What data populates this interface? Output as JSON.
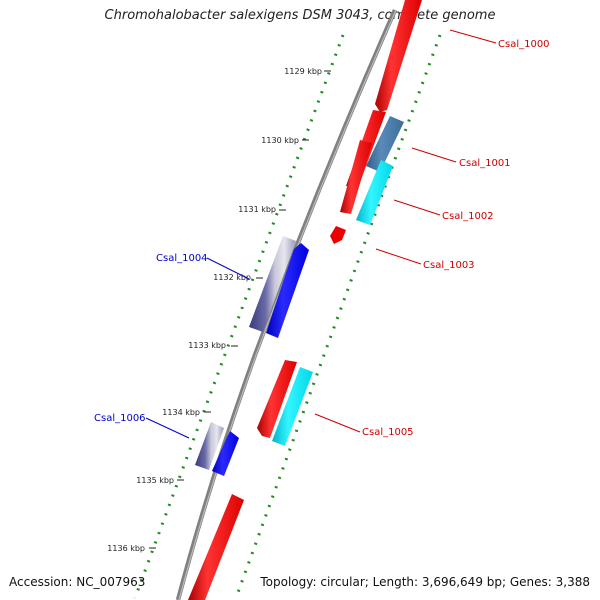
{
  "title": "Chromohalobacter salexigens DSM 3043, complete genome",
  "accession": "Accession: NC_007963",
  "summary": "Topology: circular; Length: 3,696,649 bp; Genes: 3,388",
  "colors": {
    "backbone": "#808080",
    "forward_cds": "#ff0000",
    "forward_cds_alt": "#00ffff",
    "reverse_cds": "#0000ff",
    "reverse_cds_alt": "#4b4b9b",
    "gc_ticks": "#228b22",
    "forward_label": "#cc0000",
    "reverse_label": "#0000cc"
  },
  "ticks": [
    {
      "label": "1129 kbp"
    },
    {
      "label": "1130 kbp"
    },
    {
      "label": "1131 kbp"
    },
    {
      "label": "1132 kbp"
    },
    {
      "label": "1133 kbp"
    },
    {
      "label": "1134 kbp"
    },
    {
      "label": "1135 kbp"
    },
    {
      "label": "1136 kbp"
    }
  ],
  "features": [
    {
      "name": "Csal_1000",
      "strand": "forward"
    },
    {
      "name": "Csal_1001",
      "strand": "forward"
    },
    {
      "name": "Csal_1002",
      "strand": "forward"
    },
    {
      "name": "Csal_1003",
      "strand": "forward"
    },
    {
      "name": "Csal_1004",
      "strand": "reverse"
    },
    {
      "name": "Csal_1005",
      "strand": "forward"
    },
    {
      "name": "Csal_1006",
      "strand": "reverse"
    }
  ]
}
